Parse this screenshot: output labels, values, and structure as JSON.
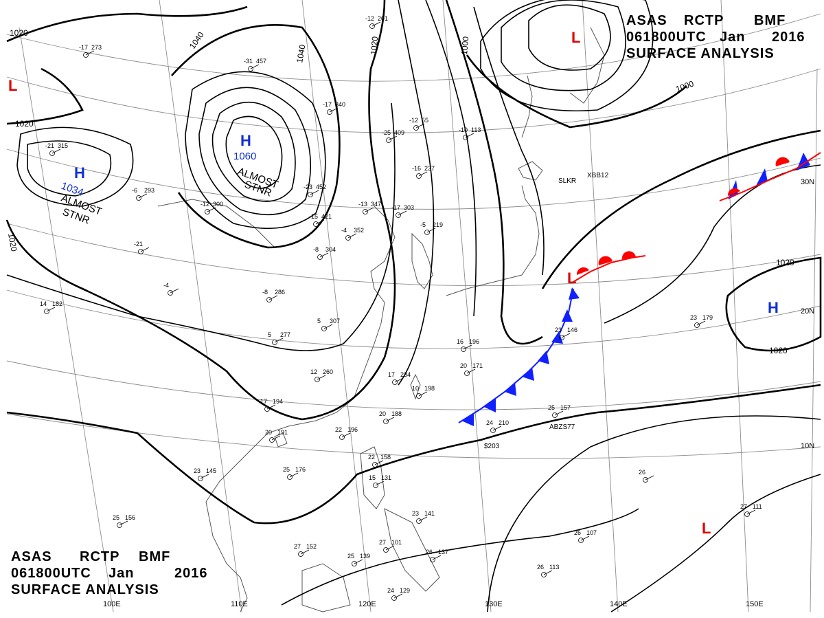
{
  "header": {
    "agency": "ASAS",
    "station": "RCTP",
    "office": "BMF",
    "valid_time": "061800UTC",
    "month": "Jan",
    "year": "2016",
    "product": "SURFACE ANALYSIS"
  },
  "colors": {
    "high": "#1030d0",
    "low": "#e00000",
    "cold_front": "#1020ff",
    "warm_front": "#ff0000",
    "isobar": "#000000",
    "grid": "#808080",
    "coast": "#555555"
  },
  "longitude_labels": [
    "100E",
    "110E",
    "120E",
    "130E",
    "140E",
    "150E"
  ],
  "latitude_labels": [
    "30N",
    "20N",
    "10N"
  ],
  "pressure_centers": [
    {
      "type": "H",
      "value": "1060",
      "note_line1": "ALMOST",
      "note_line2": "STNR"
    },
    {
      "type": "H",
      "value": "1034",
      "note_line1": "ALMOST",
      "note_line2": "STNR"
    },
    {
      "type": "H",
      "value": "",
      "note_line1": "",
      "note_line2": ""
    },
    {
      "type": "L",
      "value": "",
      "note_line1": "",
      "note_line2": ""
    },
    {
      "type": "L",
      "value": "",
      "note_line1": "",
      "note_line2": ""
    },
    {
      "type": "L",
      "value": "",
      "note_line1": "",
      "note_line2": ""
    },
    {
      "type": "L",
      "value": "",
      "note_line1": "",
      "note_line2": ""
    }
  ],
  "isobar_labels": [
    "1020",
    "1020",
    "1040",
    "1040",
    "1020",
    "1000",
    "1000",
    "1020",
    "1020",
    "1020"
  ],
  "ship_labels": [
    "SLKR",
    "XBB12",
    "ABZS77",
    "$203"
  ],
  "station_plots": [
    {
      "t": "-17",
      "p": "273"
    },
    {
      "t": "-31",
      "p": "457"
    },
    {
      "t": "-17",
      "p": "340"
    },
    {
      "t": "-25",
      "p": "409"
    },
    {
      "t": "-12",
      "p": "55"
    },
    {
      "t": "-10",
      "p": "113"
    },
    {
      "t": "-12",
      "p": "201"
    },
    {
      "t": "-21",
      "p": "315"
    },
    {
      "t": "-6",
      "p": "293"
    },
    {
      "t": "-23",
      "p": "452"
    },
    {
      "t": "-13",
      "p": "347"
    },
    {
      "t": "-17",
      "p": "303"
    },
    {
      "t": "-16",
      "p": "237"
    },
    {
      "t": "-15",
      "p": "421"
    },
    {
      "t": "-4",
      "p": "352"
    },
    {
      "t": "-5",
      "p": "219"
    },
    {
      "t": "-12",
      "p": "300"
    },
    {
      "t": "-21",
      "p": ""
    },
    {
      "t": "-8",
      "p": "304"
    },
    {
      "t": "-4",
      "p": ""
    },
    {
      "t": "-8",
      "p": "286"
    },
    {
      "t": "14",
      "p": "182"
    },
    {
      "t": "5",
      "p": "307"
    },
    {
      "t": "5",
      "p": "277"
    },
    {
      "t": "12",
      "p": "260"
    },
    {
      "t": "17",
      "p": "234"
    },
    {
      "t": "10",
      "p": "198"
    },
    {
      "t": "16",
      "p": "196"
    },
    {
      "t": "20",
      "p": "171"
    },
    {
      "t": "23",
      "p": "146"
    },
    {
      "t": "23",
      "p": "179"
    },
    {
      "t": "17",
      "p": "194"
    },
    {
      "t": "20",
      "p": "191"
    },
    {
      "t": "22",
      "p": "196"
    },
    {
      "t": "20",
      "p": "188"
    },
    {
      "t": "25",
      "p": "176"
    },
    {
      "t": "22",
      "p": "158"
    },
    {
      "t": "15",
      "p": "131"
    },
    {
      "t": "23",
      "p": "145"
    },
    {
      "t": "25",
      "p": "156"
    },
    {
      "t": "25",
      "p": "157"
    },
    {
      "t": "24",
      "p": "210"
    },
    {
      "t": "27",
      "p": "152"
    },
    {
      "t": "25",
      "p": "139"
    },
    {
      "t": "27",
      "p": "101"
    },
    {
      "t": "26",
      "p": "137"
    },
    {
      "t": "24",
      "p": "129"
    },
    {
      "t": "26",
      "p": "113"
    },
    {
      "t": "26",
      "p": "107"
    },
    {
      "t": "27",
      "p": "111"
    },
    {
      "t": "26",
      "p": ""
    },
    {
      "t": "23",
      "p": "141"
    }
  ]
}
